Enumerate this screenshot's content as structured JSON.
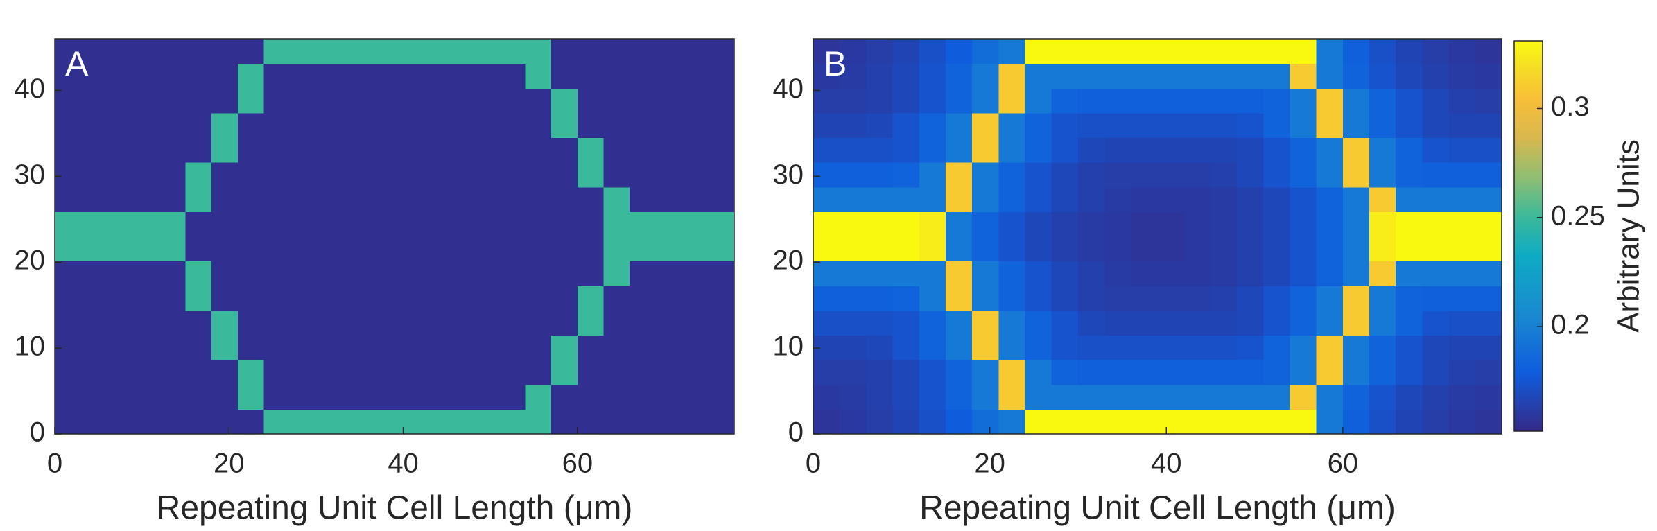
{
  "chart_data": [
    {
      "type": "heatmap",
      "panel_label": "A",
      "x_label": "Repeating Unit Cell Length (μm)",
      "xlim": [
        0,
        78
      ],
      "ylim": [
        0,
        46
      ],
      "xticks": [
        0,
        20,
        40,
        60
      ],
      "yticks": [
        0,
        10,
        20,
        30,
        40
      ],
      "colormap": "parula",
      "clim": [
        0.152,
        0.331
      ],
      "x_edges": [
        0,
        3,
        6,
        9,
        12,
        15,
        18,
        21,
        24,
        27,
        30,
        33,
        36,
        39,
        42,
        45,
        48,
        51,
        54,
        57,
        60,
        63,
        66,
        69,
        72,
        75,
        78
      ],
      "y_edges": [
        0,
        2.875,
        5.75,
        8.625,
        11.5,
        14.375,
        17.25,
        20.125,
        23,
        25.875,
        28.75,
        31.625,
        34.5,
        37.375,
        40.25,
        43.125,
        46
      ],
      "z": [
        [
          0.155,
          0.155,
          0.155,
          0.155,
          0.155,
          0.155,
          0.155,
          0.155,
          0.25,
          0.25,
          0.25,
          0.25,
          0.25,
          0.25,
          0.25,
          0.25,
          0.25,
          0.25,
          0.25,
          0.155,
          0.155,
          0.155,
          0.155,
          0.155,
          0.155,
          0.155
        ],
        [
          0.155,
          0.155,
          0.155,
          0.155,
          0.155,
          0.155,
          0.155,
          0.25,
          0.155,
          0.155,
          0.155,
          0.155,
          0.155,
          0.155,
          0.155,
          0.155,
          0.155,
          0.155,
          0.25,
          0.155,
          0.155,
          0.155,
          0.155,
          0.155,
          0.155,
          0.155
        ],
        [
          0.155,
          0.155,
          0.155,
          0.155,
          0.155,
          0.155,
          0.155,
          0.25,
          0.155,
          0.155,
          0.155,
          0.155,
          0.155,
          0.155,
          0.155,
          0.155,
          0.155,
          0.155,
          0.155,
          0.25,
          0.155,
          0.155,
          0.155,
          0.155,
          0.155,
          0.155
        ],
        [
          0.155,
          0.155,
          0.155,
          0.155,
          0.155,
          0.155,
          0.25,
          0.155,
          0.155,
          0.155,
          0.155,
          0.155,
          0.155,
          0.155,
          0.155,
          0.155,
          0.155,
          0.155,
          0.155,
          0.25,
          0.155,
          0.155,
          0.155,
          0.155,
          0.155,
          0.155
        ],
        [
          0.155,
          0.155,
          0.155,
          0.155,
          0.155,
          0.155,
          0.25,
          0.155,
          0.155,
          0.155,
          0.155,
          0.155,
          0.155,
          0.155,
          0.155,
          0.155,
          0.155,
          0.155,
          0.155,
          0.155,
          0.25,
          0.155,
          0.155,
          0.155,
          0.155,
          0.155
        ],
        [
          0.155,
          0.155,
          0.155,
          0.155,
          0.155,
          0.25,
          0.155,
          0.155,
          0.155,
          0.155,
          0.155,
          0.155,
          0.155,
          0.155,
          0.155,
          0.155,
          0.155,
          0.155,
          0.155,
          0.155,
          0.25,
          0.155,
          0.155,
          0.155,
          0.155,
          0.155
        ],
        [
          0.155,
          0.155,
          0.155,
          0.155,
          0.155,
          0.25,
          0.155,
          0.155,
          0.155,
          0.155,
          0.155,
          0.155,
          0.155,
          0.155,
          0.155,
          0.155,
          0.155,
          0.155,
          0.155,
          0.155,
          0.155,
          0.25,
          0.155,
          0.155,
          0.155,
          0.155
        ],
        [
          0.25,
          0.25,
          0.25,
          0.25,
          0.25,
          0.155,
          0.155,
          0.155,
          0.155,
          0.155,
          0.155,
          0.155,
          0.155,
          0.155,
          0.155,
          0.155,
          0.155,
          0.155,
          0.155,
          0.155,
          0.155,
          0.25,
          0.25,
          0.25,
          0.25,
          0.25
        ],
        [
          0.25,
          0.25,
          0.25,
          0.25,
          0.25,
          0.155,
          0.155,
          0.155,
          0.155,
          0.155,
          0.155,
          0.155,
          0.155,
          0.155,
          0.155,
          0.155,
          0.155,
          0.155,
          0.155,
          0.155,
          0.155,
          0.25,
          0.25,
          0.25,
          0.25,
          0.25
        ],
        [
          0.155,
          0.155,
          0.155,
          0.155,
          0.155,
          0.25,
          0.155,
          0.155,
          0.155,
          0.155,
          0.155,
          0.155,
          0.155,
          0.155,
          0.155,
          0.155,
          0.155,
          0.155,
          0.155,
          0.155,
          0.155,
          0.25,
          0.155,
          0.155,
          0.155,
          0.155
        ],
        [
          0.155,
          0.155,
          0.155,
          0.155,
          0.155,
          0.25,
          0.155,
          0.155,
          0.155,
          0.155,
          0.155,
          0.155,
          0.155,
          0.155,
          0.155,
          0.155,
          0.155,
          0.155,
          0.155,
          0.155,
          0.25,
          0.155,
          0.155,
          0.155,
          0.155,
          0.155
        ],
        [
          0.155,
          0.155,
          0.155,
          0.155,
          0.155,
          0.155,
          0.25,
          0.155,
          0.155,
          0.155,
          0.155,
          0.155,
          0.155,
          0.155,
          0.155,
          0.155,
          0.155,
          0.155,
          0.155,
          0.155,
          0.25,
          0.155,
          0.155,
          0.155,
          0.155,
          0.155
        ],
        [
          0.155,
          0.155,
          0.155,
          0.155,
          0.155,
          0.155,
          0.25,
          0.155,
          0.155,
          0.155,
          0.155,
          0.155,
          0.155,
          0.155,
          0.155,
          0.155,
          0.155,
          0.155,
          0.155,
          0.25,
          0.155,
          0.155,
          0.155,
          0.155,
          0.155,
          0.155
        ],
        [
          0.155,
          0.155,
          0.155,
          0.155,
          0.155,
          0.155,
          0.155,
          0.25,
          0.155,
          0.155,
          0.155,
          0.155,
          0.155,
          0.155,
          0.155,
          0.155,
          0.155,
          0.155,
          0.155,
          0.25,
          0.155,
          0.155,
          0.155,
          0.155,
          0.155,
          0.155
        ],
        [
          0.155,
          0.155,
          0.155,
          0.155,
          0.155,
          0.155,
          0.155,
          0.25,
          0.155,
          0.155,
          0.155,
          0.155,
          0.155,
          0.155,
          0.155,
          0.155,
          0.155,
          0.155,
          0.25,
          0.155,
          0.155,
          0.155,
          0.155,
          0.155,
          0.155,
          0.155
        ],
        [
          0.155,
          0.155,
          0.155,
          0.155,
          0.155,
          0.155,
          0.155,
          0.155,
          0.25,
          0.25,
          0.25,
          0.25,
          0.25,
          0.25,
          0.25,
          0.25,
          0.25,
          0.25,
          0.25,
          0.155,
          0.155,
          0.155,
          0.155,
          0.155,
          0.155,
          0.155
        ]
      ]
    },
    {
      "type": "heatmap",
      "panel_label": "B",
      "x_label": "Repeating Unit Cell Length (μm)",
      "xlim": [
        0,
        78
      ],
      "ylim": [
        0,
        46
      ],
      "xticks": [
        0,
        20,
        40,
        60
      ],
      "yticks": [
        0,
        10,
        20,
        30,
        40
      ],
      "colormap": "parula",
      "clim": [
        0.152,
        0.331
      ],
      "colorbar_label": "Arbitrary Units",
      "colorbar_ticks": [
        0.2,
        0.25,
        0.3
      ],
      "x_edges": [
        0,
        3,
        6,
        9,
        12,
        15,
        18,
        21,
        24,
        27,
        30,
        33,
        36,
        39,
        42,
        45,
        48,
        51,
        54,
        57,
        60,
        63,
        66,
        69,
        72,
        75,
        78
      ],
      "y_edges": [
        0,
        2.875,
        5.75,
        8.625,
        11.5,
        14.375,
        17.25,
        20.125,
        23,
        25.875,
        28.75,
        31.625,
        34.5,
        37.375,
        40.25,
        43.125,
        46
      ],
      "z": [
        [
          0.158,
          0.16,
          0.162,
          0.166,
          0.172,
          0.179,
          0.189,
          0.196,
          0.33,
          0.33,
          0.33,
          0.33,
          0.33,
          0.33,
          0.33,
          0.33,
          0.33,
          0.33,
          0.33,
          0.196,
          0.181,
          0.172,
          0.166,
          0.162,
          0.16,
          0.158
        ],
        [
          0.16,
          0.161,
          0.164,
          0.168,
          0.174,
          0.183,
          0.196,
          0.31,
          0.196,
          0.196,
          0.196,
          0.196,
          0.196,
          0.196,
          0.196,
          0.196,
          0.196,
          0.196,
          0.31,
          0.196,
          0.183,
          0.174,
          0.168,
          0.164,
          0.161,
          0.16
        ],
        [
          0.162,
          0.162,
          0.164,
          0.168,
          0.174,
          0.183,
          0.196,
          0.31,
          0.196,
          0.183,
          0.181,
          0.181,
          0.181,
          0.181,
          0.181,
          0.181,
          0.181,
          0.183,
          0.196,
          0.31,
          0.196,
          0.183,
          0.174,
          0.168,
          0.164,
          0.162
        ],
        [
          0.166,
          0.166,
          0.168,
          0.174,
          0.183,
          0.196,
          0.31,
          0.196,
          0.183,
          0.174,
          0.172,
          0.172,
          0.172,
          0.172,
          0.172,
          0.172,
          0.174,
          0.183,
          0.196,
          0.31,
          0.196,
          0.183,
          0.174,
          0.168,
          0.166,
          0.166
        ],
        [
          0.172,
          0.172,
          0.172,
          0.174,
          0.183,
          0.196,
          0.31,
          0.196,
          0.183,
          0.174,
          0.168,
          0.166,
          0.166,
          0.166,
          0.166,
          0.166,
          0.168,
          0.174,
          0.183,
          0.196,
          0.31,
          0.196,
          0.183,
          0.174,
          0.172,
          0.172
        ],
        [
          0.181,
          0.181,
          0.181,
          0.183,
          0.196,
          0.31,
          0.196,
          0.183,
          0.174,
          0.168,
          0.164,
          0.162,
          0.162,
          0.162,
          0.162,
          0.164,
          0.168,
          0.174,
          0.183,
          0.196,
          0.31,
          0.196,
          0.183,
          0.181,
          0.181,
          0.181
        ],
        [
          0.196,
          0.196,
          0.196,
          0.196,
          0.196,
          0.31,
          0.196,
          0.183,
          0.174,
          0.168,
          0.164,
          0.161,
          0.16,
          0.16,
          0.16,
          0.161,
          0.164,
          0.168,
          0.174,
          0.183,
          0.196,
          0.31,
          0.196,
          0.196,
          0.196,
          0.196
        ],
        [
          0.33,
          0.33,
          0.33,
          0.33,
          0.325,
          0.196,
          0.183,
          0.174,
          0.168,
          0.164,
          0.161,
          0.16,
          0.158,
          0.158,
          0.16,
          0.161,
          0.164,
          0.168,
          0.174,
          0.183,
          0.196,
          0.325,
          0.33,
          0.33,
          0.33,
          0.33
        ],
        [
          0.33,
          0.33,
          0.33,
          0.33,
          0.325,
          0.196,
          0.183,
          0.174,
          0.168,
          0.164,
          0.161,
          0.16,
          0.158,
          0.158,
          0.16,
          0.161,
          0.164,
          0.168,
          0.174,
          0.183,
          0.196,
          0.325,
          0.33,
          0.33,
          0.33,
          0.33
        ],
        [
          0.196,
          0.196,
          0.196,
          0.196,
          0.196,
          0.31,
          0.196,
          0.183,
          0.174,
          0.168,
          0.164,
          0.161,
          0.16,
          0.16,
          0.16,
          0.161,
          0.164,
          0.168,
          0.174,
          0.183,
          0.196,
          0.31,
          0.196,
          0.196,
          0.196,
          0.196
        ],
        [
          0.181,
          0.181,
          0.181,
          0.183,
          0.196,
          0.31,
          0.196,
          0.183,
          0.174,
          0.168,
          0.164,
          0.162,
          0.162,
          0.162,
          0.162,
          0.164,
          0.168,
          0.174,
          0.183,
          0.196,
          0.31,
          0.196,
          0.183,
          0.181,
          0.181,
          0.181
        ],
        [
          0.172,
          0.172,
          0.172,
          0.174,
          0.183,
          0.196,
          0.31,
          0.196,
          0.183,
          0.174,
          0.168,
          0.166,
          0.166,
          0.166,
          0.166,
          0.166,
          0.168,
          0.174,
          0.183,
          0.196,
          0.31,
          0.196,
          0.183,
          0.174,
          0.172,
          0.172
        ],
        [
          0.166,
          0.166,
          0.168,
          0.174,
          0.183,
          0.196,
          0.31,
          0.196,
          0.183,
          0.174,
          0.172,
          0.172,
          0.172,
          0.172,
          0.172,
          0.172,
          0.174,
          0.183,
          0.196,
          0.31,
          0.196,
          0.183,
          0.174,
          0.168,
          0.166,
          0.166
        ],
        [
          0.162,
          0.162,
          0.164,
          0.168,
          0.174,
          0.183,
          0.196,
          0.31,
          0.196,
          0.183,
          0.181,
          0.181,
          0.181,
          0.181,
          0.181,
          0.181,
          0.181,
          0.183,
          0.196,
          0.31,
          0.196,
          0.183,
          0.174,
          0.168,
          0.164,
          0.162
        ],
        [
          0.16,
          0.161,
          0.164,
          0.168,
          0.174,
          0.183,
          0.196,
          0.31,
          0.196,
          0.196,
          0.196,
          0.196,
          0.196,
          0.196,
          0.196,
          0.196,
          0.196,
          0.196,
          0.31,
          0.196,
          0.183,
          0.174,
          0.168,
          0.164,
          0.161,
          0.16
        ],
        [
          0.158,
          0.16,
          0.162,
          0.166,
          0.172,
          0.179,
          0.189,
          0.196,
          0.33,
          0.33,
          0.33,
          0.33,
          0.33,
          0.33,
          0.33,
          0.33,
          0.33,
          0.33,
          0.33,
          0.196,
          0.181,
          0.172,
          0.166,
          0.162,
          0.16,
          0.158
        ]
      ]
    }
  ]
}
